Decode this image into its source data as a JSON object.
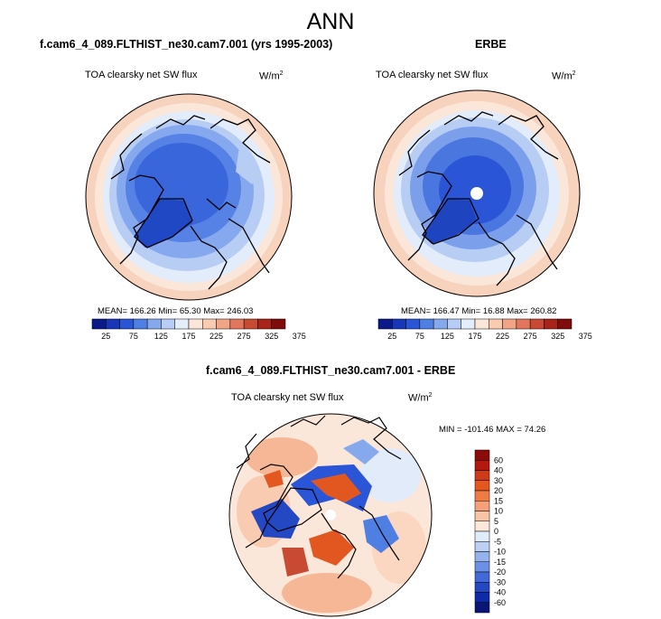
{
  "figure": {
    "title": "ANN"
  },
  "panels": {
    "model": {
      "title": "f.cam6_4_089.FLTHIST_ne30.cam7.001 (yrs 1995-2003)",
      "variable": "TOA clearsky net SW flux",
      "units": "W/m",
      "units_exp": "2",
      "stats": "MEAN= 166.26  Min=  65.30  Max= 246.03"
    },
    "obs": {
      "title": "ERBE",
      "variable": "TOA clearsky net SW flux",
      "units": "W/m",
      "units_exp": "2",
      "stats": "MEAN= 166.47  Min=  16.88  Max= 260.82"
    },
    "diff": {
      "title": "f.cam6_4_089.FLTHIST_ne30.cam7.001 - ERBE",
      "variable": "TOA clearsky net SW flux",
      "units": "W/m",
      "units_exp": "2",
      "stats": "MIN = -101.46 MAX = 74.26"
    }
  },
  "colorbars": {
    "abs": {
      "labels": [
        "25",
        "75",
        "125",
        "175",
        "225",
        "275",
        "325",
        "375"
      ],
      "colors": [
        "#0a1a8a",
        "#1737b8",
        "#2a55d6",
        "#4f7fe3",
        "#86a9ee",
        "#b7cdf5",
        "#e4edfb",
        "#fbe6d9",
        "#f9cbb1",
        "#f2a487",
        "#e2765c",
        "#c84a33",
        "#a8231a",
        "#7f0b0b"
      ]
    },
    "diff": {
      "labels": [
        "60",
        "40",
        "30",
        "20",
        "15",
        "10",
        "5",
        "0",
        "-5",
        "-10",
        "-15",
        "-20",
        "-30",
        "-40",
        "-60"
      ],
      "colors": [
        "#8b0b0b",
        "#b3190f",
        "#cf3a18",
        "#e4571f",
        "#f07c45",
        "#f6a07a",
        "#f9c4a6",
        "#fde7d8",
        "#e2ebf9",
        "#bcd0f3",
        "#94b2ec",
        "#6c90e3",
        "#4369d8",
        "#2447c4",
        "#0f2aa6",
        "#0a1576"
      ]
    },
    "icons": {
      "left_end": "triangle-left-icon",
      "right_end": "triangle-right-icon"
    }
  },
  "maps": {
    "projection": "north-polar-stereographic",
    "pole_marker": "white-circle"
  }
}
